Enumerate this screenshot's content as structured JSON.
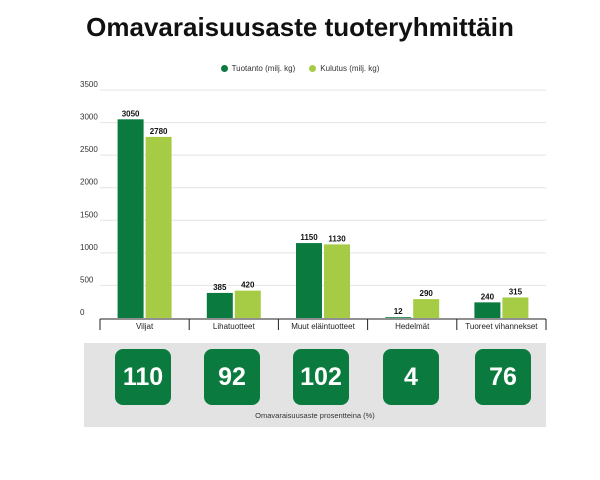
{
  "title": "Omavaraisuusaste tuoteryhmittäin",
  "colors": {
    "production": "#0a7a3e",
    "consumption": "#a6cc45",
    "box": "#0a7a3e",
    "panel": "#e3e3e3"
  },
  "chart_data": {
    "type": "bar",
    "title": "Omavaraisuusaste tuoteryhmittäin",
    "categories": [
      "Viljat",
      "Lihatuotteet",
      "Muut eläintuotteet",
      "Hedelmät",
      "Tuoreet vihannekset"
    ],
    "series": [
      {
        "name": "Tuotanto (milj. kg)",
        "values": [
          3050,
          385,
          1150,
          12,
          240
        ]
      },
      {
        "name": "Kulutus (milj. kg)",
        "values": [
          2780,
          420,
          1130,
          290,
          315
        ]
      }
    ],
    "ylim": [
      0,
      3500
    ],
    "yticks": [
      0,
      500,
      1000,
      1500,
      2000,
      2500,
      3000,
      3500
    ],
    "legend": "top-center",
    "grid": true
  },
  "self_sufficiency": {
    "label": "Omavaraisuusaste prosentteina (%)",
    "values": [
      "110",
      "92",
      "102",
      "4",
      "76"
    ]
  }
}
